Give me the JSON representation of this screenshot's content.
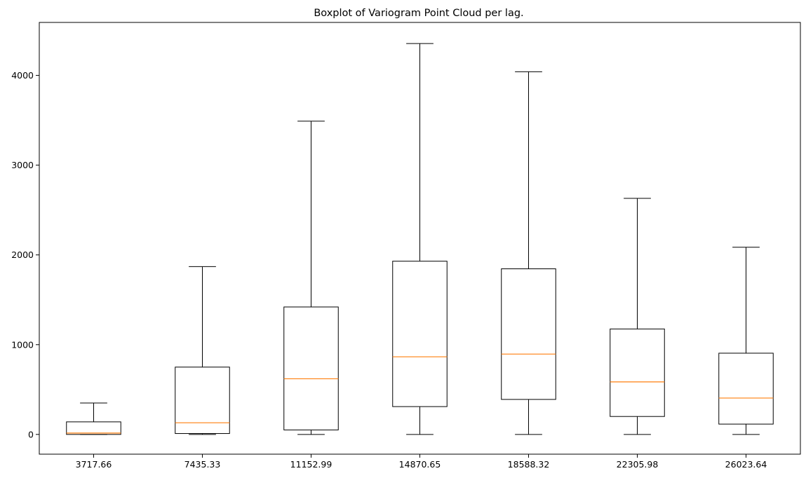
{
  "chart_data": {
    "type": "boxplot",
    "title": "Boxplot of Variogram Point Cloud per lag.",
    "xlabel": "",
    "ylabel": "",
    "categories": [
      "3717.66",
      "7435.33",
      "11152.99",
      "14870.65",
      "18588.32",
      "22305.98",
      "26023.64"
    ],
    "yticks": [
      "0",
      "1000",
      "2000",
      "3000",
      "4000"
    ],
    "ylim": [
      -220,
      4590
    ],
    "grid": false,
    "boxes": [
      {
        "whisker_low": 0,
        "q1": 0,
        "median": 15,
        "q3": 140,
        "whisker_high": 350
      },
      {
        "whisker_low": 0,
        "q1": 10,
        "median": 130,
        "q3": 750,
        "whisker_high": 1870
      },
      {
        "whisker_low": 0,
        "q1": 50,
        "median": 620,
        "q3": 1420,
        "whisker_high": 3490
      },
      {
        "whisker_low": 0,
        "q1": 310,
        "median": 865,
        "q3": 1930,
        "whisker_high": 4355
      },
      {
        "whisker_low": 0,
        "q1": 390,
        "median": 895,
        "q3": 1845,
        "whisker_high": 4040
      },
      {
        "whisker_low": 0,
        "q1": 200,
        "median": 585,
        "q3": 1175,
        "whisker_high": 2630
      },
      {
        "whisker_low": 0,
        "q1": 115,
        "median": 405,
        "q3": 905,
        "whisker_high": 2085
      }
    ],
    "colors": {
      "box": "#000000",
      "median": "#ff7f0e",
      "axes": "#000000",
      "background": "#ffffff"
    }
  }
}
